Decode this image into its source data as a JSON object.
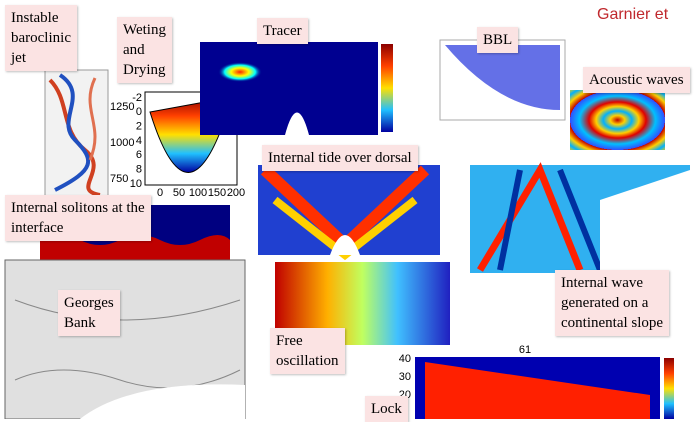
{
  "header": {
    "author": "Garnier et"
  },
  "labels": [
    {
      "lines": [
        "Instable",
        "baroclinic",
        "jet"
      ]
    },
    {
      "lines": [
        "Weting",
        "and",
        "Drying"
      ]
    },
    {
      "lines": [
        "Tracer"
      ]
    },
    {
      "lines": [
        "BBL"
      ]
    },
    {
      "lines": [
        "Acoustic waves"
      ]
    },
    {
      "lines": [
        "Internal tide over dorsal"
      ]
    },
    {
      "lines": [
        "Internal solitons at the",
        "interface"
      ]
    },
    {
      "lines": [
        "Georges",
        "Bank"
      ]
    },
    {
      "lines": [
        "Free",
        "oscillation"
      ]
    },
    {
      "lines": [
        "Internal wave",
        "generated on a",
        "continental slope"
      ]
    },
    {
      "lines": [
        "Lock"
      ]
    }
  ],
  "plots": {
    "jet": {
      "yticks": [
        "1250",
        "1000",
        "750"
      ]
    },
    "wetting": {
      "yticks": [
        "-2",
        "0",
        "2",
        "4",
        "6",
        "8",
        "10"
      ],
      "xticks": [
        "0",
        "50",
        "100",
        "150",
        "200"
      ]
    },
    "lock": {
      "title": "61",
      "yticks": [
        "40",
        "30",
        "20"
      ]
    }
  }
}
